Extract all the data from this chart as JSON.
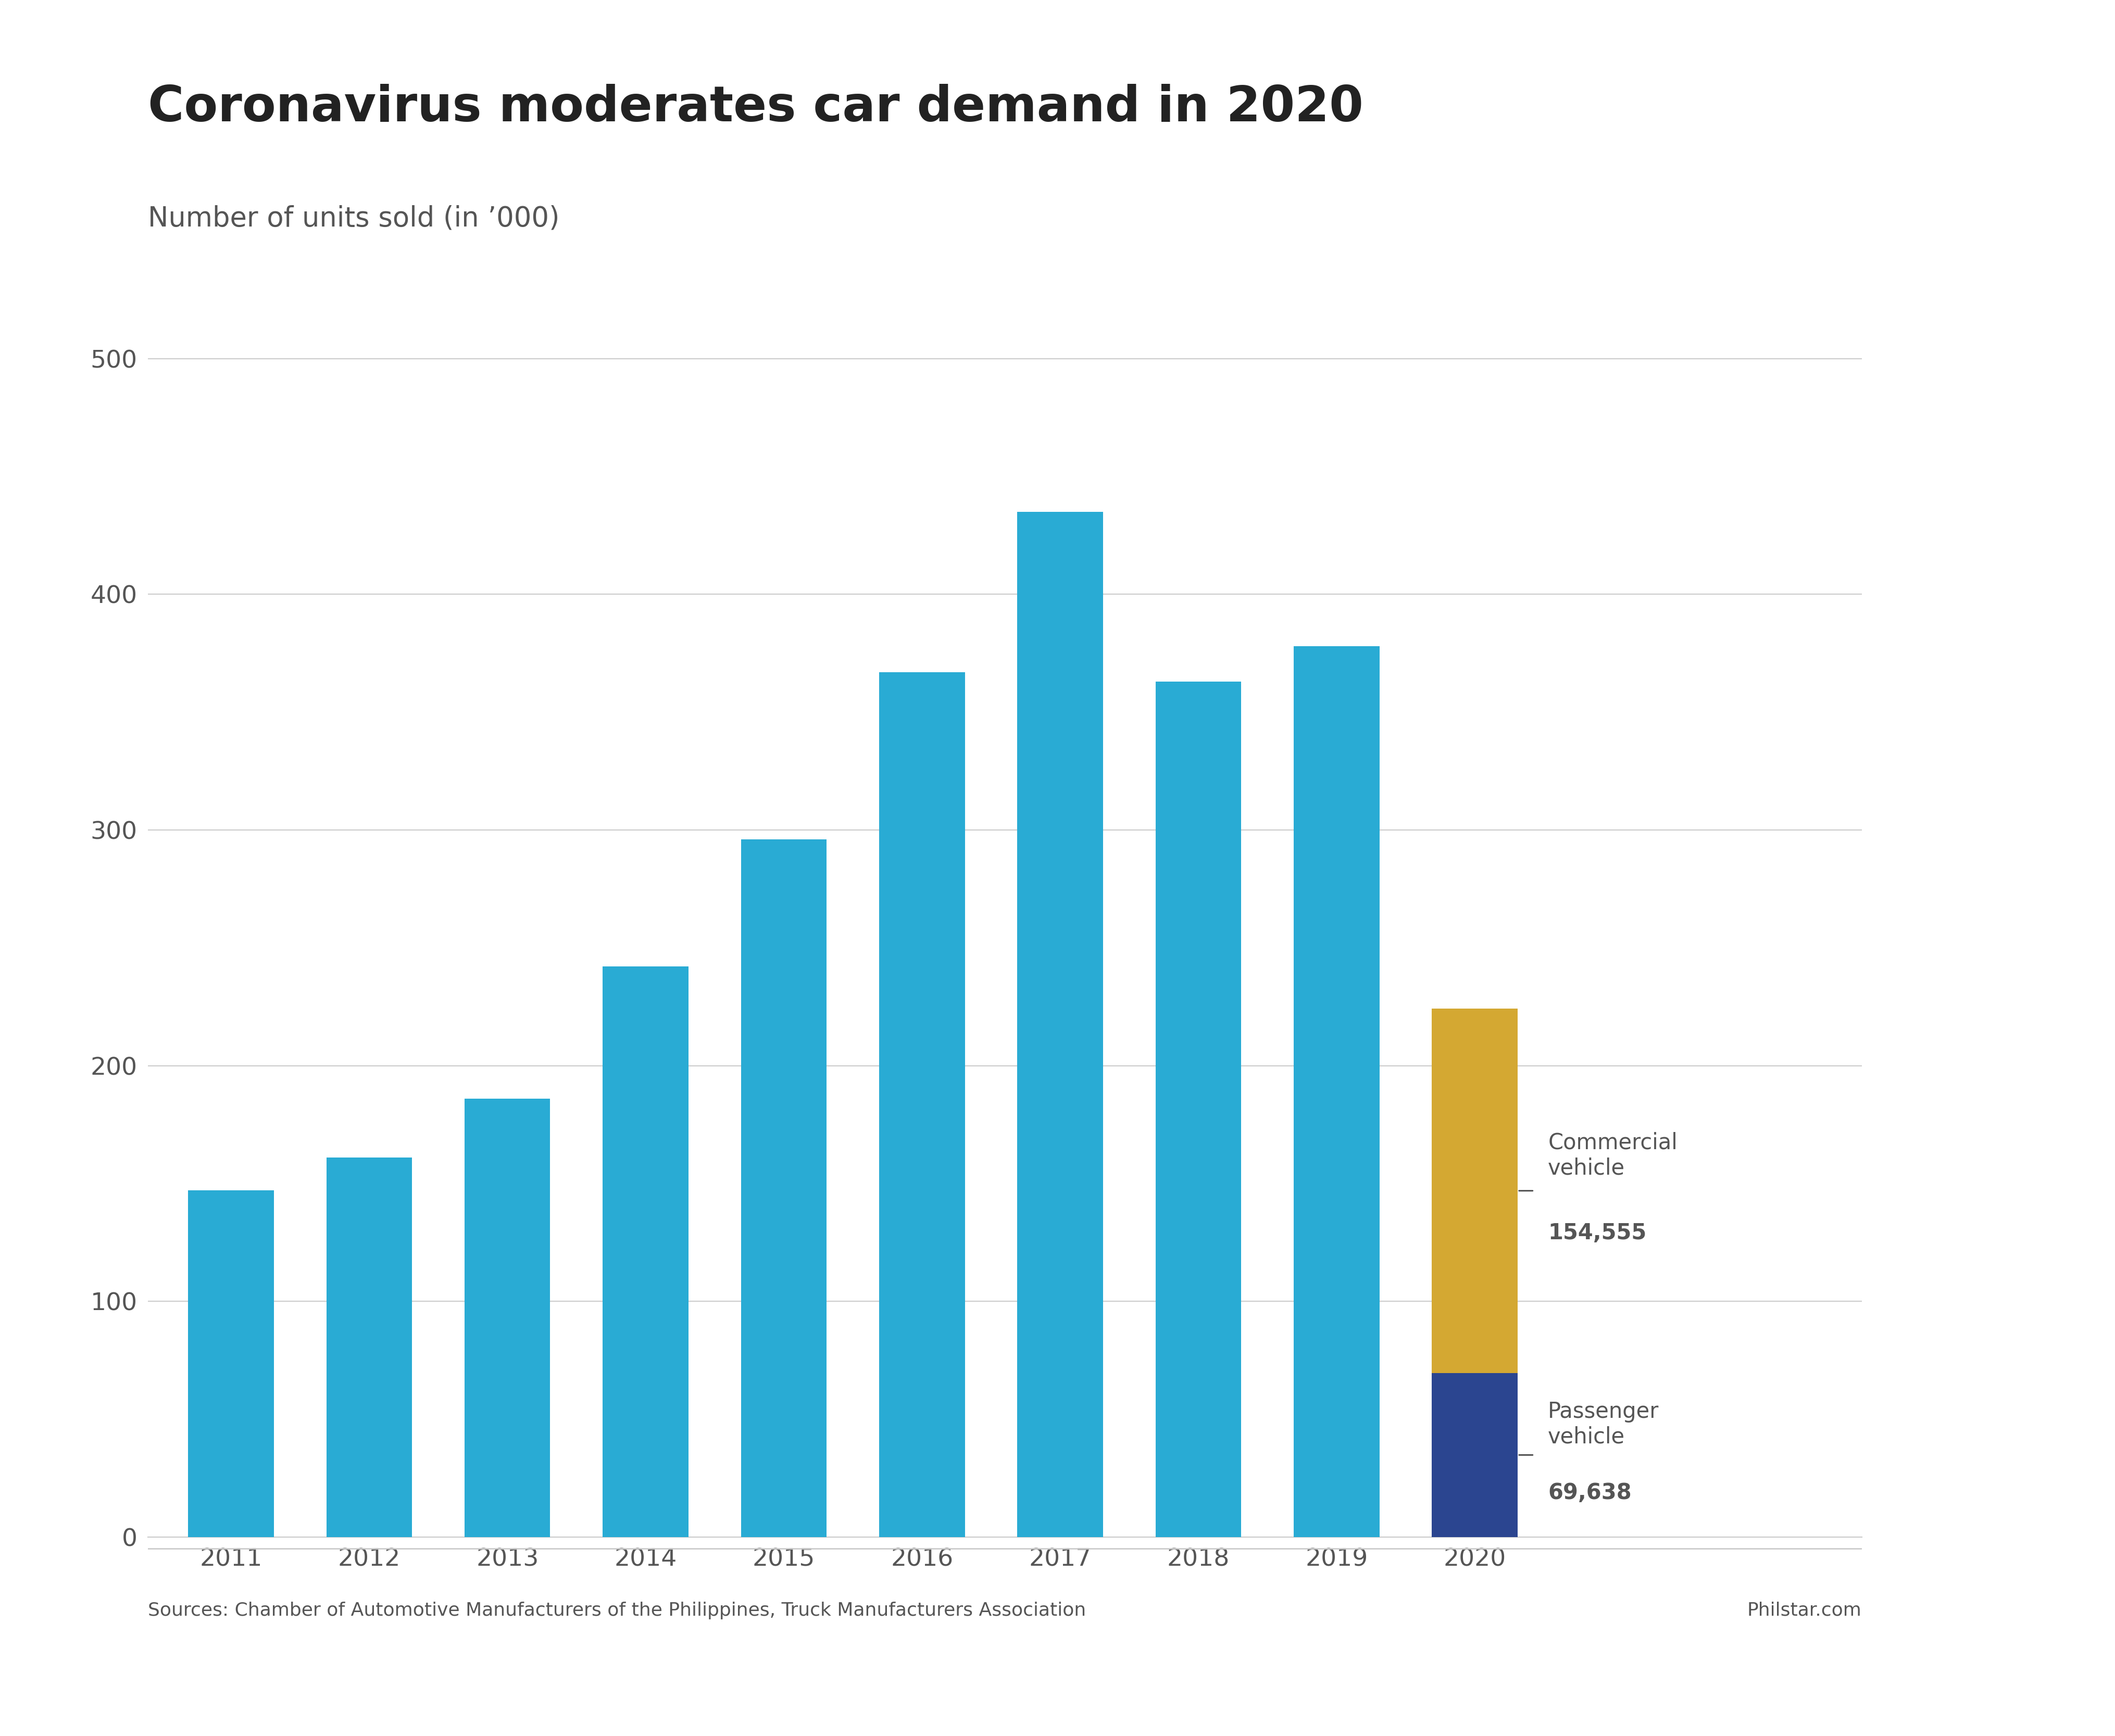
{
  "title": "Coronavirus moderates car demand in 2020",
  "subtitle": "Number of units sold (in ’000)",
  "years": [
    2011,
    2012,
    2013,
    2014,
    2015,
    2016,
    2017,
    2018,
    2019,
    2020
  ],
  "values": [
    147,
    161,
    186,
    242,
    296,
    367,
    435,
    363,
    378,
    224
  ],
  "blue_bar_color": "#29ABD4",
  "dark_blue_2020": "#2B4590",
  "gold_2020": "#D4A832",
  "passenger_vehicle_2020": 69.638,
  "commercial_vehicle_2020": 154.555,
  "passenger_label": "Passenger\nvehicle",
  "passenger_value": "69,638",
  "commercial_label": "Commercial\nvehicle",
  "commercial_value": "154,555",
  "ylim": [
    0,
    540
  ],
  "yticks": [
    0,
    100,
    200,
    300,
    400,
    500
  ],
  "background_color": "#ffffff",
  "source_text": "Sources: Chamber of Automotive Manufacturers of the Philippines, Truck Manufacturers Association",
  "philstar_text": "Philstar.com",
  "text_color": "#555555",
  "grid_color": "#cccccc",
  "title_color": "#222222",
  "annotation_color": "#444444"
}
